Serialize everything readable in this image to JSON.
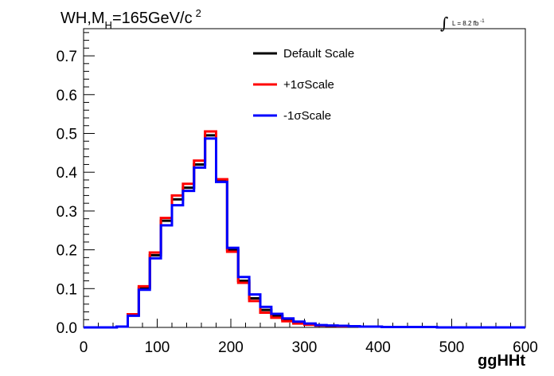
{
  "title": {
    "prefix": "WH,M",
    "subscript": "H",
    "mass": "=165GeV/c",
    "superscript": "2"
  },
  "luminosity": {
    "integral": "∫",
    "text": "L = 8.2 fb",
    "superscript": "-1"
  },
  "chart_data": {
    "type": "line",
    "style": "step-histogram",
    "xlabel": "ggHHt",
    "ylabel": "",
    "xlim": [
      0,
      600
    ],
    "ylim": [
      0,
      0.77
    ],
    "x_ticks": [
      0,
      100,
      200,
      300,
      400,
      500,
      600
    ],
    "x_tick_labels": [
      "0",
      "100",
      "200",
      "300",
      "400",
      "500",
      "600"
    ],
    "y_ticks": [
      0,
      0.1,
      0.2,
      0.3,
      0.4,
      0.5,
      0.6,
      0.7
    ],
    "y_tick_labels": [
      "0.0",
      "0.1",
      "0.2",
      "0.3",
      "0.4",
      "0.5",
      "0.6",
      "0.7"
    ],
    "legend_position": "top-center",
    "bin_edges": [
      0,
      15,
      30,
      45,
      60,
      75,
      90,
      105,
      120,
      135,
      150,
      165,
      180,
      195,
      210,
      225,
      240,
      255,
      270,
      285,
      300,
      315,
      330,
      345,
      360,
      375,
      390,
      405,
      420,
      435,
      450,
      465,
      480,
      495,
      510,
      525,
      540,
      555,
      570,
      585,
      600
    ],
    "series": [
      {
        "name": "Default Scale",
        "color": "#000000",
        "values": [
          0,
          0,
          0,
          0.002,
          0.032,
          0.102,
          0.186,
          0.275,
          0.33,
          0.36,
          0.42,
          0.495,
          0.38,
          0.2,
          0.12,
          0.075,
          0.045,
          0.03,
          0.02,
          0.012,
          0.008,
          0.005,
          0.004,
          0.003,
          0.003,
          0.002,
          0.002,
          0.001,
          0.001,
          0.001,
          0.001,
          0.001,
          0,
          0,
          0,
          0,
          0,
          0,
          0,
          0
        ]
      },
      {
        "name": "+1σScale",
        "color": "#ff0000",
        "values": [
          0,
          0,
          0,
          0.002,
          0.034,
          0.106,
          0.193,
          0.282,
          0.34,
          0.37,
          0.43,
          0.505,
          0.382,
          0.195,
          0.115,
          0.068,
          0.038,
          0.025,
          0.016,
          0.01,
          0.007,
          0.005,
          0.004,
          0.003,
          0.003,
          0.002,
          0.002,
          0.001,
          0.001,
          0.001,
          0.001,
          0.001,
          0,
          0,
          0,
          0,
          0,
          0,
          0,
          0
        ]
      },
      {
        "name": "-1σScale",
        "color": "#0000ff",
        "values": [
          0,
          0,
          0,
          0.002,
          0.03,
          0.097,
          0.178,
          0.263,
          0.315,
          0.352,
          0.412,
          0.487,
          0.375,
          0.205,
          0.13,
          0.085,
          0.053,
          0.035,
          0.023,
          0.015,
          0.01,
          0.006,
          0.005,
          0.004,
          0.003,
          0.002,
          0.002,
          0.001,
          0.001,
          0.001,
          0.001,
          0.001,
          0,
          0,
          0,
          0,
          0,
          0,
          0,
          0
        ]
      }
    ]
  }
}
